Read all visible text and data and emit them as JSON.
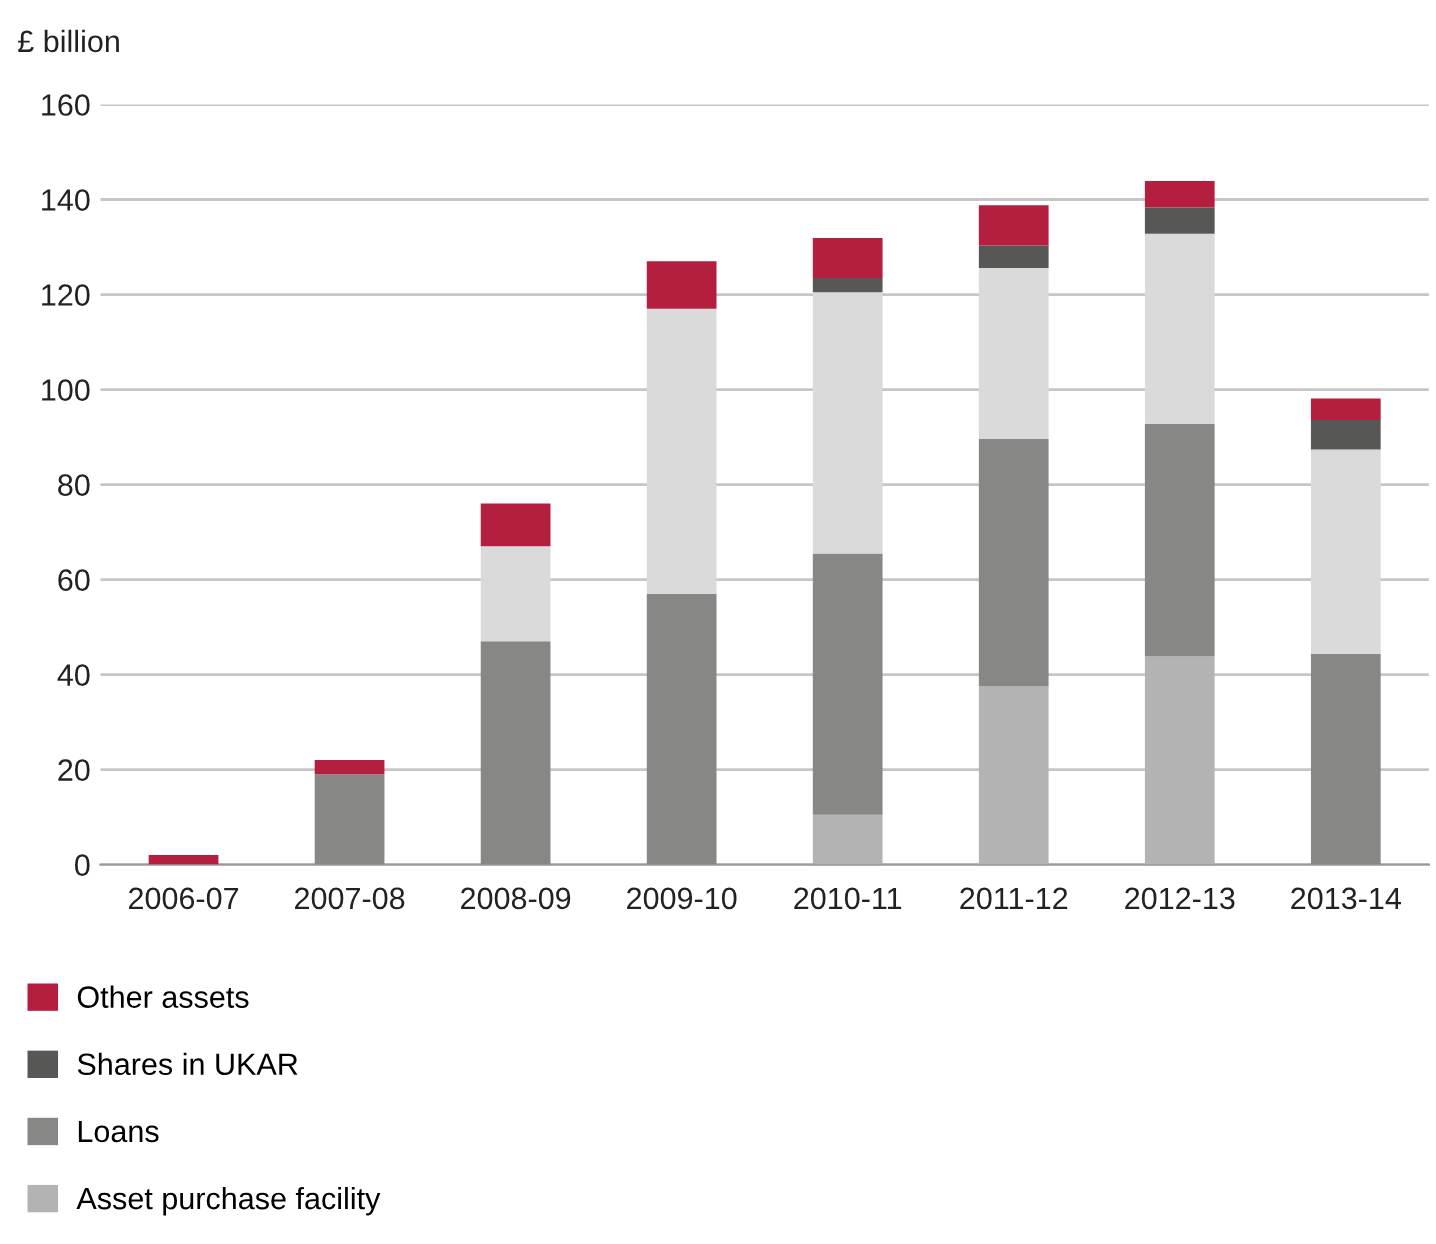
{
  "chart_data": {
    "type": "bar",
    "stacked": true,
    "ylabel": "£ billion",
    "categories": [
      "2006-07",
      "2007-08",
      "2008-09",
      "2009-10",
      "2010-11",
      "2011-12",
      "2012-13",
      "2013-14"
    ],
    "series": [
      {
        "name": "Asset purchase facility",
        "color": "#b3b3b3",
        "values": [
          0,
          0,
          0,
          0,
          10.5,
          37.6,
          43.8,
          0
        ]
      },
      {
        "name": "Loans",
        "color": "#878786",
        "values": [
          0,
          19,
          47,
          57,
          55,
          52,
          49,
          44.4
        ]
      },
      {
        "color": "#dadada",
        "values": [
          0,
          0,
          20,
          60,
          55,
          36,
          40,
          43
        ]
      },
      {
        "name": "Shares in UKAR",
        "color": "#575756",
        "values": [
          0,
          0,
          0,
          0,
          3,
          4.7,
          5.5,
          6.2
        ]
      },
      {
        "name": "Other assets",
        "color": "#b41f3f",
        "values": [
          2,
          3,
          9,
          10,
          8.4,
          8.5,
          5.6,
          4.5
        ]
      }
    ],
    "ylim": [
      0,
      160
    ],
    "yticks": [
      0,
      20,
      40,
      60,
      80,
      100,
      120,
      140,
      160
    ],
    "grid": "y",
    "legend": "bottom"
  }
}
